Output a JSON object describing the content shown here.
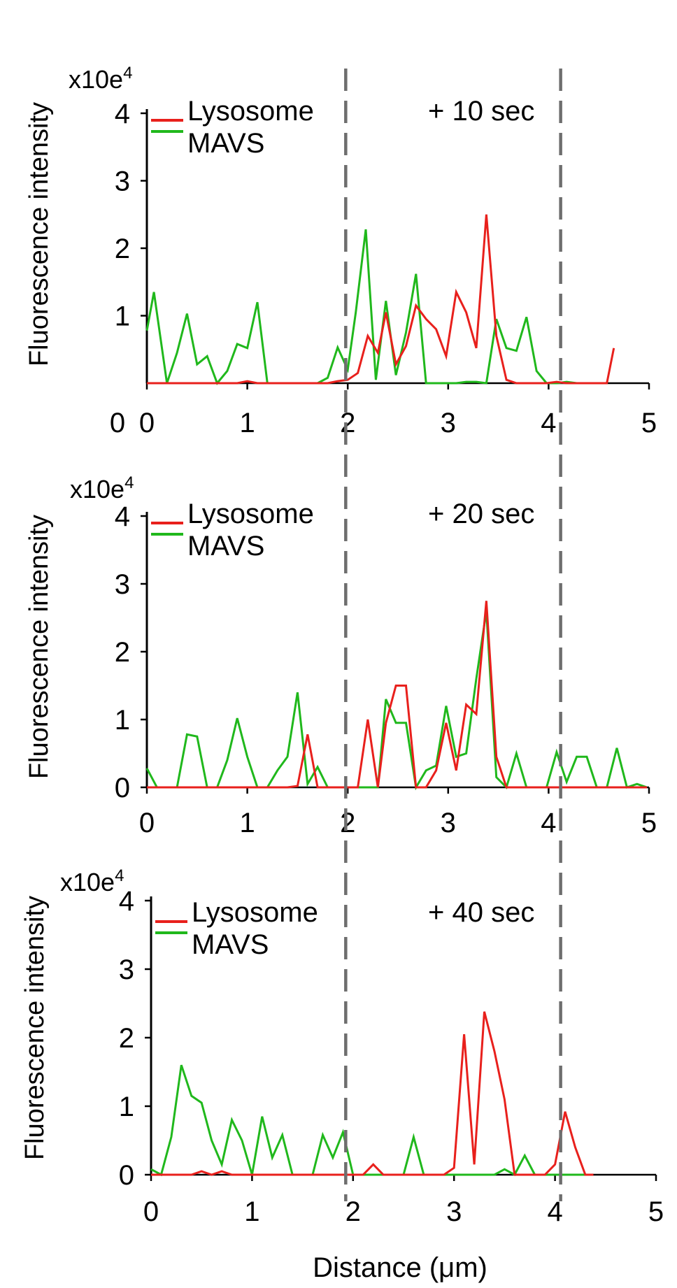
{
  "colors": {
    "lysosome": "#e8201c",
    "mavs": "#20b81c",
    "axis": "#000000",
    "marker_line": "#6e6e6e"
  },
  "y_scale_label": "x10e",
  "y_scale_exp": "4",
  "ylabel": "Fluorescence intensity",
  "xlabel": "Distance (μm)",
  "chart_data": [
    {
      "type": "line",
      "time_label": "+ 10 sec",
      "xlim": [
        0,
        5
      ],
      "ylim": [
        0,
        4
      ],
      "x_ticks": [
        "0",
        "1",
        "2",
        "3",
        "4",
        "5"
      ],
      "y_ticks": [
        "1",
        "2",
        "3",
        "4"
      ],
      "origin_label": "0",
      "legend": "top-left",
      "grid": false,
      "marker_lines_x": [
        1.98,
        4.12
      ],
      "series": [
        {
          "name": "Lysosome",
          "color": "#e8201c",
          "x": [
            0,
            0.1,
            0.2,
            0.3,
            0.4,
            0.5,
            0.6,
            0.7,
            0.8,
            0.9,
            1.0,
            1.1,
            1.2,
            1.3,
            1.4,
            1.5,
            1.6,
            1.7,
            1.8,
            1.9,
            2.0,
            2.1,
            2.2,
            2.3,
            2.38,
            2.48,
            2.58,
            2.68,
            2.78,
            2.88,
            2.98,
            3.08,
            3.18,
            3.28,
            3.38,
            3.48,
            3.58,
            3.68,
            3.78,
            3.88,
            3.98,
            4.08,
            4.18,
            4.28,
            4.38,
            4.48,
            4.58,
            4.65
          ],
          "values": [
            0,
            0,
            0,
            0,
            0,
            0,
            0,
            0,
            0,
            0,
            0.03,
            0,
            0,
            0,
            0,
            0,
            0,
            0,
            0,
            0.03,
            0.05,
            0.15,
            0.7,
            0.45,
            1.05,
            0.28,
            0.55,
            1.15,
            0.95,
            0.8,
            0.4,
            1.35,
            1.05,
            0.52,
            2.5,
            0.7,
            0.05,
            0,
            0,
            0,
            0,
            0.02,
            0,
            0,
            0,
            0,
            0,
            0.52
          ]
        },
        {
          "name": "MAVS",
          "color": "#20b81c",
          "x": [
            0,
            0.07,
            0.2,
            0.3,
            0.4,
            0.5,
            0.6,
            0.7,
            0.8,
            0.9,
            1.0,
            1.1,
            1.2,
            1.3,
            1.4,
            1.5,
            1.6,
            1.7,
            1.8,
            1.9,
            2.0,
            2.08,
            2.18,
            2.28,
            2.38,
            2.48,
            2.58,
            2.68,
            2.78,
            2.88,
            2.98,
            3.08,
            3.18,
            3.28,
            3.38,
            3.48,
            3.58,
            3.68,
            3.78,
            3.88,
            3.98,
            4.08,
            4.18,
            4.28,
            4.38,
            4.48,
            4.58
          ],
          "values": [
            0.78,
            1.35,
            0,
            0.45,
            1.03,
            0.28,
            0.4,
            0,
            0.18,
            0.58,
            0.52,
            1.2,
            0,
            0,
            0,
            0,
            0,
            0,
            0.08,
            0.53,
            0.2,
            1.05,
            2.28,
            0.05,
            1.22,
            0.12,
            0.75,
            1.62,
            0,
            0,
            0,
            0,
            0.02,
            0.02,
            0,
            0.95,
            0.52,
            0.48,
            0.98,
            0.18,
            0,
            0,
            0.02,
            0,
            0,
            0,
            0
          ]
        }
      ]
    },
    {
      "type": "line",
      "time_label": "+ 20 sec",
      "xlim": [
        0,
        5
      ],
      "ylim": [
        0,
        4
      ],
      "x_ticks": [
        "0",
        "1",
        "2",
        "3",
        "4",
        "5"
      ],
      "y_ticks": [
        "0",
        "1",
        "2",
        "3",
        "4"
      ],
      "origin_label": "",
      "legend": "top-left",
      "grid": false,
      "marker_lines_x": [
        1.98,
        4.12
      ],
      "series": [
        {
          "name": "Lysosome",
          "color": "#e8201c",
          "x": [
            0,
            0.1,
            0.2,
            0.3,
            0.4,
            0.5,
            0.6,
            0.7,
            0.8,
            0.9,
            1.0,
            1.1,
            1.2,
            1.3,
            1.4,
            1.5,
            1.6,
            1.7,
            1.8,
            1.9,
            2.0,
            2.1,
            2.2,
            2.3,
            2.38,
            2.48,
            2.58,
            2.68,
            2.78,
            2.88,
            2.98,
            3.08,
            3.18,
            3.28,
            3.38,
            3.48,
            3.58,
            3.68,
            3.78,
            3.88,
            3.98,
            4.08,
            4.18,
            4.28,
            4.38,
            4.48,
            4.58,
            4.68,
            4.78,
            4.88,
            4.98
          ],
          "values": [
            0,
            0,
            0,
            0,
            0,
            0,
            0,
            0,
            0,
            0,
            0,
            0,
            0,
            0,
            0,
            0.02,
            0.78,
            0,
            0,
            0,
            0,
            0,
            1.0,
            0,
            0.95,
            1.5,
            1.5,
            0,
            0,
            0.25,
            0.95,
            0.25,
            1.22,
            1.08,
            2.75,
            0.45,
            0,
            0,
            0,
            0,
            0,
            0,
            0,
            0,
            0,
            0,
            0,
            0,
            0,
            0,
            0
          ]
        },
        {
          "name": "MAVS",
          "color": "#20b81c",
          "x": [
            0,
            0.1,
            0.2,
            0.3,
            0.4,
            0.5,
            0.6,
            0.7,
            0.8,
            0.9,
            1.0,
            1.1,
            1.2,
            1.3,
            1.4,
            1.5,
            1.6,
            1.7,
            1.8,
            1.9,
            2.0,
            2.1,
            2.2,
            2.3,
            2.38,
            2.48,
            2.58,
            2.68,
            2.78,
            2.88,
            2.98,
            3.08,
            3.18,
            3.28,
            3.38,
            3.48,
            3.58,
            3.68,
            3.78,
            3.88,
            3.98,
            4.08,
            4.18,
            4.28,
            4.38,
            4.48,
            4.58,
            4.68,
            4.78,
            4.88,
            4.98
          ],
          "values": [
            0.28,
            0,
            0,
            0,
            0.78,
            0.75,
            0,
            0,
            0.4,
            1.02,
            0.45,
            0,
            0,
            0.25,
            0.45,
            1.4,
            0.05,
            0.3,
            0,
            0,
            0,
            0,
            0,
            0,
            1.3,
            0.95,
            0.95,
            0,
            0.25,
            0.32,
            1.2,
            0.45,
            0.5,
            1.6,
            2.6,
            0.15,
            0,
            0.5,
            0,
            0,
            0,
            0.52,
            0.08,
            0.45,
            0.45,
            0,
            0,
            0.58,
            0,
            0.05,
            0
          ]
        }
      ]
    },
    {
      "type": "line",
      "time_label": "+ 40 sec",
      "xlim": [
        0,
        5
      ],
      "ylim": [
        0,
        4
      ],
      "x_ticks": [
        "0",
        "1",
        "2",
        "3",
        "4",
        "5"
      ],
      "y_ticks": [
        "0",
        "1",
        "2",
        "3",
        "4"
      ],
      "origin_label": "",
      "legend": "top-left",
      "grid": false,
      "marker_lines_x": [
        1.98,
        4.12
      ],
      "series": [
        {
          "name": "Lysosome",
          "color": "#e8201c",
          "x": [
            0,
            0.1,
            0.2,
            0.3,
            0.4,
            0.5,
            0.6,
            0.7,
            0.8,
            0.9,
            1.0,
            1.1,
            1.2,
            1.3,
            1.4,
            1.5,
            1.6,
            1.7,
            1.8,
            1.9,
            2.0,
            2.1,
            2.2,
            2.3,
            2.4,
            2.5,
            2.6,
            2.7,
            2.8,
            2.9,
            3.0,
            3.1,
            3.2,
            3.3,
            3.4,
            3.5,
            3.6,
            3.7,
            3.8,
            3.9,
            4.0,
            4.1,
            4.2,
            4.3,
            4.38
          ],
          "values": [
            0,
            0,
            0,
            0,
            0,
            0.05,
            0,
            0.05,
            0,
            0,
            0,
            0,
            0,
            0,
            0,
            0,
            0,
            0,
            0,
            0,
            0,
            0,
            0.15,
            0,
            0,
            0,
            0,
            0,
            0,
            0,
            0.1,
            2.05,
            0.15,
            2.38,
            1.8,
            1.1,
            0,
            0,
            0,
            0,
            0.15,
            0.92,
            0.4,
            0,
            0
          ]
        },
        {
          "name": "MAVS",
          "color": "#20b81c",
          "x": [
            0,
            0.1,
            0.2,
            0.3,
            0.4,
            0.5,
            0.6,
            0.7,
            0.8,
            0.9,
            1.0,
            1.1,
            1.2,
            1.3,
            1.4,
            1.5,
            1.6,
            1.7,
            1.8,
            1.9,
            2.0,
            2.1,
            2.2,
            2.3,
            2.4,
            2.5,
            2.6,
            2.7,
            2.8,
            2.9,
            3.0,
            3.1,
            3.2,
            3.3,
            3.4,
            3.5,
            3.6,
            3.7,
            3.8,
            3.9,
            4.0,
            4.1,
            4.2,
            4.3
          ],
          "values": [
            0.08,
            0,
            0.55,
            1.6,
            1.15,
            1.05,
            0.5,
            0.15,
            0.8,
            0.5,
            0,
            0.85,
            0.25,
            0.58,
            0,
            0,
            0,
            0.58,
            0.25,
            0.62,
            0,
            0,
            0,
            0,
            0,
            0,
            0.55,
            0,
            0,
            0,
            0,
            0,
            0,
            0,
            0,
            0.08,
            0,
            0.28,
            0,
            0,
            0,
            0,
            0,
            0
          ]
        }
      ]
    }
  ]
}
